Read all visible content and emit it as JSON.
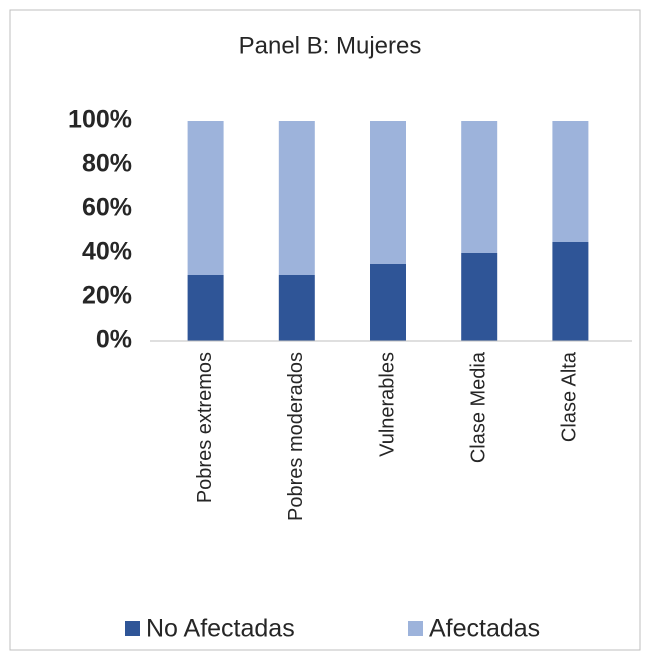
{
  "chart_data": {
    "type": "stacked_bar",
    "title": "Panel B: Mujeres",
    "categories": [
      "Pobres extremos",
      "Pobres moderados",
      "Vulnerables",
      "Clase Media",
      "Clase Alta"
    ],
    "series": [
      {
        "name": "No Afectadas",
        "color": "#2f5597",
        "values": [
          30,
          30,
          35,
          40,
          45
        ]
      },
      {
        "name": "Afectadas",
        "color": "#9db3db",
        "values": [
          70,
          70,
          65,
          60,
          55
        ]
      }
    ],
    "ylim": [
      0,
      100
    ],
    "yticks": [
      {
        "value": 0,
        "label": "0%"
      },
      {
        "value": 20,
        "label": "20%"
      },
      {
        "value": 40,
        "label": "40%"
      },
      {
        "value": 60,
        "label": "60%"
      },
      {
        "value": 80,
        "label": "80%"
      },
      {
        "value": 100,
        "label": "100%"
      }
    ],
    "grid": false,
    "legend": "bottom"
  }
}
